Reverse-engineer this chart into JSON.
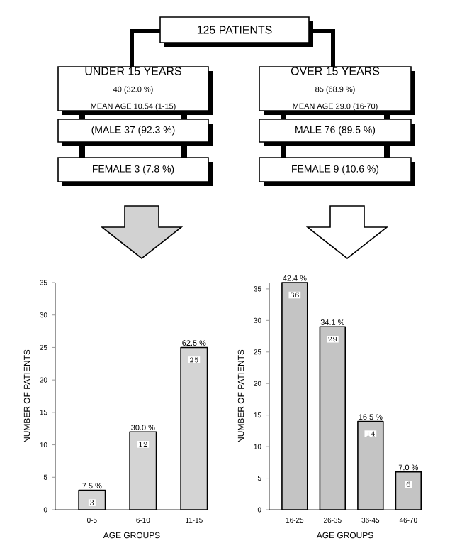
{
  "chart_data": [
    {
      "type": "other",
      "title": "125 PATIENTS",
      "annotations": [
        "UNDER 15 YEARS",
        "40 (32.0 %)",
        "MEAN AGE 10.54 (1-15)",
        "(MALE 37 (92.3 %)",
        "FEMALE 3 (7.8 %)",
        "OVER 15 YEARS",
        "85 (68.9 %)",
        "MEAN AGE 29.0 (16-70)",
        "MALE 76 (89.5 %)",
        "FEMALE 9 (10.6 %)"
      ]
    },
    {
      "type": "bar",
      "categories": [
        "0-5",
        "6-10",
        "11-15"
      ],
      "values": [
        3,
        12,
        25
      ],
      "color": "#d4d4d4",
      "xlabel": "AGE GROUPS",
      "ylabel": "NUMBER OF PATIENTS",
      "ylim": [
        0,
        35
      ],
      "yticks": [
        0,
        5,
        10,
        15,
        20,
        25,
        30,
        35
      ],
      "data_labels": true,
      "annotations": [
        {
          "text": "7.5 %",
          "x": "0-5",
          "y": 3
        },
        {
          "text": "30.0 %",
          "x": "6-10",
          "y": 12
        },
        {
          "text": "62.5 %",
          "x": "11-15",
          "y": 25
        }
      ]
    },
    {
      "type": "bar",
      "categories": [
        "16-25",
        "26-35",
        "36-45",
        "46-70"
      ],
      "values": [
        36,
        29,
        14,
        6
      ],
      "color": "#c4c4c4",
      "xlabel": "AGE GROUPS",
      "ylabel": "NUMBER OF PATIENTS",
      "ylim": [
        0,
        36
      ],
      "yticks": [
        0,
        5,
        10,
        15,
        20,
        25,
        30,
        35
      ],
      "data_labels": true,
      "annotations": [
        {
          "text": "42.4 %",
          "x": "16-25",
          "y": 36
        },
        {
          "text": "34.1 %",
          "x": "26-35",
          "y": 29
        },
        {
          "text": "16.5 %",
          "x": "36-45",
          "y": 14
        },
        {
          "text": "7.0 %",
          "x": "46-70",
          "y": 6
        }
      ]
    }
  ]
}
